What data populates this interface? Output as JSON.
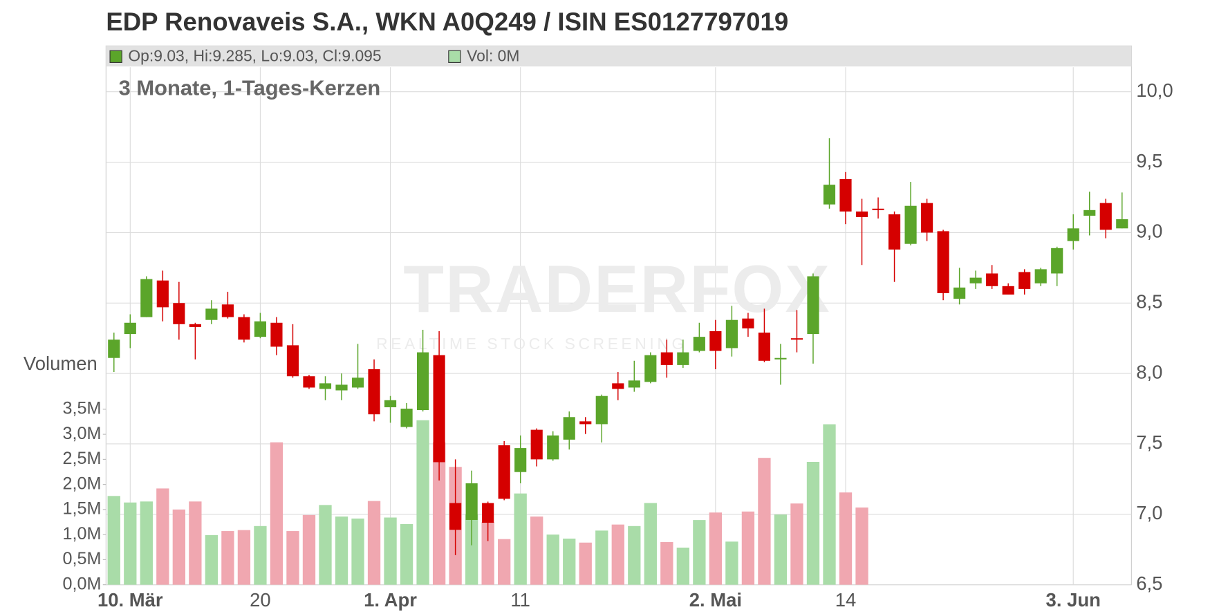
{
  "chart_data": {
    "type": "candlestick",
    "title": "EDP Renovaveis S.A., WKN A0Q249 / ISIN ES0127797019",
    "subtitle": "3 Monate, 1-Tages-Kerzen",
    "legend_text": "Op:9.03, Hi:9.285, Lo:9.03, Cl:9.095",
    "volume_legend_text": "Vol: 0M",
    "volume_axis_title": "Volumen",
    "watermark": "TRADERFOX",
    "watermark_sub": "REALTIME STOCK SCREENING",
    "categories": [
      null,
      "10. Mär",
      null,
      null,
      null,
      null,
      null,
      null,
      null,
      "20",
      null,
      null,
      null,
      null,
      null,
      null,
      null,
      "1. Apr",
      null,
      null,
      null,
      null,
      null,
      null,
      null,
      "11",
      null,
      null,
      null,
      null,
      null,
      null,
      null,
      null,
      null,
      null,
      null,
      "2. Mai",
      null,
      null,
      null,
      null,
      null,
      null,
      null,
      "14",
      null,
      null,
      null,
      null,
      null,
      null,
      null,
      null,
      null,
      null,
      null,
      null,
      null,
      "3. Jun",
      null,
      null,
      null
    ],
    "open": [
      8.11,
      8.28,
      8.4,
      8.66,
      8.5,
      8.35,
      8.38,
      8.49,
      8.4,
      8.26,
      8.36,
      8.2,
      7.98,
      7.89,
      7.88,
      7.9,
      8.03,
      7.76,
      7.62,
      7.74,
      8.13,
      7.08,
      6.96,
      7.08,
      7.49,
      7.3,
      7.6,
      7.39,
      7.53,
      7.66,
      7.64,
      7.93,
      7.9,
      7.94,
      8.15,
      8.06,
      8.16,
      8.3,
      8.18,
      8.39,
      8.29,
      8.1,
      8.25,
      8.28,
      9.2,
      9.38,
      9.15,
      9.17,
      9.13,
      8.92,
      9.21,
      9.01,
      8.53,
      8.64,
      8.71,
      8.62,
      8.72,
      8.64,
      8.71,
      8.94,
      9.12,
      9.21,
      9.03
    ],
    "high": [
      8.29,
      8.42,
      8.69,
      8.73,
      8.65,
      8.36,
      8.52,
      8.58,
      8.42,
      8.43,
      8.4,
      8.35,
      7.99,
      7.98,
      8.0,
      8.21,
      8.1,
      7.84,
      7.79,
      8.31,
      8.3,
      7.39,
      7.31,
      7.09,
      7.52,
      7.56,
      7.61,
      7.59,
      7.73,
      7.69,
      7.85,
      8.01,
      8.09,
      8.15,
      8.24,
      8.24,
      8.36,
      8.38,
      8.48,
      8.43,
      8.46,
      8.21,
      8.45,
      8.71,
      9.67,
      9.43,
      9.24,
      9.25,
      9.15,
      9.36,
      9.24,
      9.02,
      8.75,
      8.73,
      8.77,
      8.64,
      8.74,
      8.75,
      8.9,
      9.13,
      9.29,
      9.24,
      9.285
    ],
    "low": [
      8.01,
      8.18,
      8.4,
      8.37,
      8.24,
      8.1,
      8.35,
      8.39,
      8.22,
      8.25,
      8.13,
      7.97,
      7.89,
      7.81,
      7.81,
      7.89,
      7.66,
      7.65,
      7.61,
      7.73,
      7.24,
      6.71,
      6.78,
      6.81,
      7.1,
      7.22,
      7.34,
      7.38,
      7.46,
      7.57,
      7.51,
      7.81,
      7.87,
      7.93,
      7.97,
      8.04,
      8.15,
      8.03,
      8.12,
      8.26,
      8.08,
      7.92,
      8.15,
      8.07,
      9.17,
      9.06,
      8.77,
      9.1,
      8.65,
      8.91,
      8.94,
      8.52,
      8.49,
      8.6,
      8.6,
      8.56,
      8.56,
      8.62,
      8.62,
      8.88,
      8.98,
      8.96,
      9.03
    ],
    "close": [
      8.24,
      8.36,
      8.67,
      8.47,
      8.35,
      8.33,
      8.46,
      8.4,
      8.24,
      8.37,
      8.19,
      7.98,
      7.9,
      7.93,
      7.92,
      7.97,
      7.71,
      7.81,
      7.75,
      8.15,
      7.37,
      6.89,
      7.22,
      6.94,
      7.11,
      7.47,
      7.39,
      7.56,
      7.69,
      7.64,
      7.84,
      7.89,
      7.95,
      8.13,
      8.06,
      8.15,
      8.26,
      8.16,
      8.38,
      8.32,
      8.09,
      8.11,
      8.24,
      8.69,
      9.34,
      9.15,
      9.11,
      9.16,
      8.88,
      9.19,
      9.0,
      8.57,
      8.61,
      8.68,
      8.62,
      8.56,
      8.6,
      8.74,
      8.89,
      9.03,
      9.16,
      9.02,
      9.095
    ],
    "volume": [
      1.77,
      1.64,
      1.66,
      1.92,
      1.5,
      1.66,
      0.99,
      1.07,
      1.09,
      1.17,
      2.84,
      1.07,
      1.39,
      1.59,
      1.36,
      1.32,
      1.67,
      1.34,
      1.21,
      3.28,
      2.84,
      2.35,
      1.4,
      1.25,
      0.91,
      1.82,
      1.36,
      1.0,
      0.92,
      0.84,
      1.08,
      1.2,
      1.17,
      1.63,
      0.85,
      0.74,
      1.29,
      1.44,
      0.86,
      1.46,
      2.53,
      1.4,
      1.62,
      2.45,
      3.2,
      1.84,
      1.54,
      0,
      0,
      0,
      0,
      0,
      0,
      0,
      0,
      0,
      0,
      0,
      0,
      0,
      0,
      0,
      0
    ],
    "ylim": [
      6.5,
      10.174
    ],
    "yticks": [
      {
        "value": 6.5,
        "label": "6,5"
      },
      {
        "value": 7.0,
        "label": "7,0"
      },
      {
        "value": 7.5,
        "label": "7,5"
      },
      {
        "value": 8.0,
        "label": "8,0"
      },
      {
        "value": 8.5,
        "label": "8,5"
      },
      {
        "value": 9.0,
        "label": "9,0"
      },
      {
        "value": 9.5,
        "label": "9,5"
      },
      {
        "value": 10.0,
        "label": "10,0"
      }
    ],
    "volume_lim": [
      0,
      10.32
    ],
    "volume_ticks": [
      {
        "value": 0,
        "label": "0,0M"
      },
      {
        "value": 0.5,
        "label": "0,5M"
      },
      {
        "value": 1.0,
        "label": "1,0M"
      },
      {
        "value": 1.5,
        "label": "1,5M"
      },
      {
        "value": 2.0,
        "label": "2,0M"
      },
      {
        "value": 2.5,
        "label": "2,5M"
      },
      {
        "value": 3.0,
        "label": "3,0M"
      },
      {
        "value": 3.5,
        "label": "3,5M"
      }
    ],
    "up_color": "#5ba52a",
    "down_color": "#d50000",
    "volume_up_color": "#a9dca8",
    "volume_down_color": "#f0a7b0",
    "grid": true
  }
}
